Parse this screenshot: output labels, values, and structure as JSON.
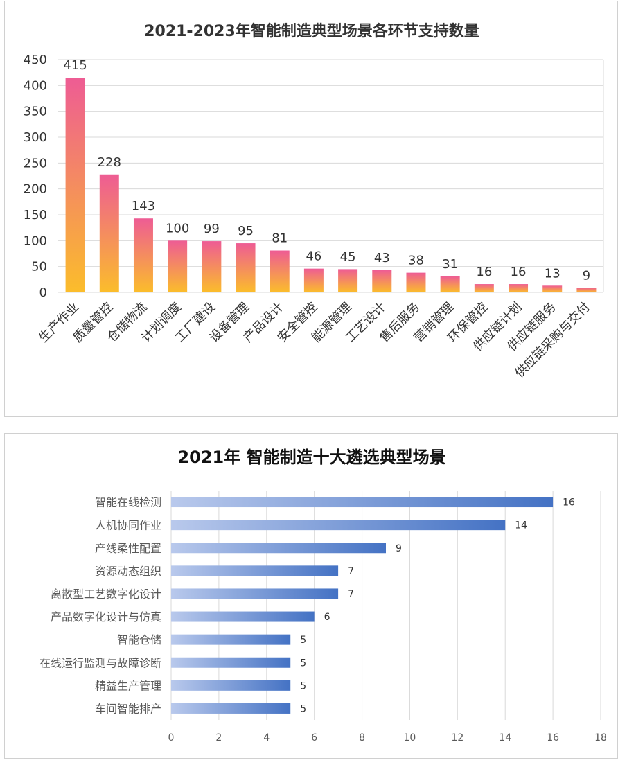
{
  "colors": {
    "bar1_top": "#ee5c94",
    "bar1_bottom": "#fbbd2b",
    "bar2_left": "#b9c9ec",
    "bar2_right": "#4472c4",
    "grid": "#d9d9d9"
  },
  "chart_data": [
    {
      "type": "bar",
      "title": "2021-2023年智能制造典型场景各环节支持数量",
      "categories": [
        "生产作业",
        "质量管控",
        "仓储物流",
        "计划调度",
        "工厂建设",
        "设备管理",
        "产品设计",
        "安全管控",
        "能源管理",
        "工艺设计",
        "售后服务",
        "营销管理",
        "环保管控",
        "供应链计划",
        "供应链服务",
        "供应链采购与交付"
      ],
      "values": [
        415,
        228,
        143,
        100,
        99,
        95,
        81,
        46,
        45,
        43,
        38,
        31,
        16,
        16,
        13,
        9
      ],
      "yticks": [
        "0",
        "50",
        "100",
        "150",
        "200",
        "250",
        "300",
        "350",
        "400",
        "450"
      ],
      "ylim": [
        0,
        450
      ],
      "xlabel": "",
      "ylabel": "",
      "grid": true
    },
    {
      "type": "bar",
      "orientation": "horizontal",
      "title": "2021年 智能制造十大遴选典型场景",
      "categories": [
        "智能在线检测",
        "人机协同作业",
        "产线柔性配置",
        "资源动态组织",
        "离散型工艺数字化设计",
        "产品数字化设计与仿真",
        "智能仓储",
        "在线运行监测与故障诊断",
        "精益生产管理",
        "车间智能排产"
      ],
      "values": [
        16,
        14,
        9,
        7,
        7,
        6,
        5,
        5,
        5,
        5
      ],
      "xticks": [
        "0",
        "2",
        "4",
        "6",
        "8",
        "10",
        "12",
        "14",
        "16",
        "18"
      ],
      "xlim": [
        0,
        18
      ],
      "xlabel": "",
      "ylabel": "",
      "grid": true
    }
  ]
}
